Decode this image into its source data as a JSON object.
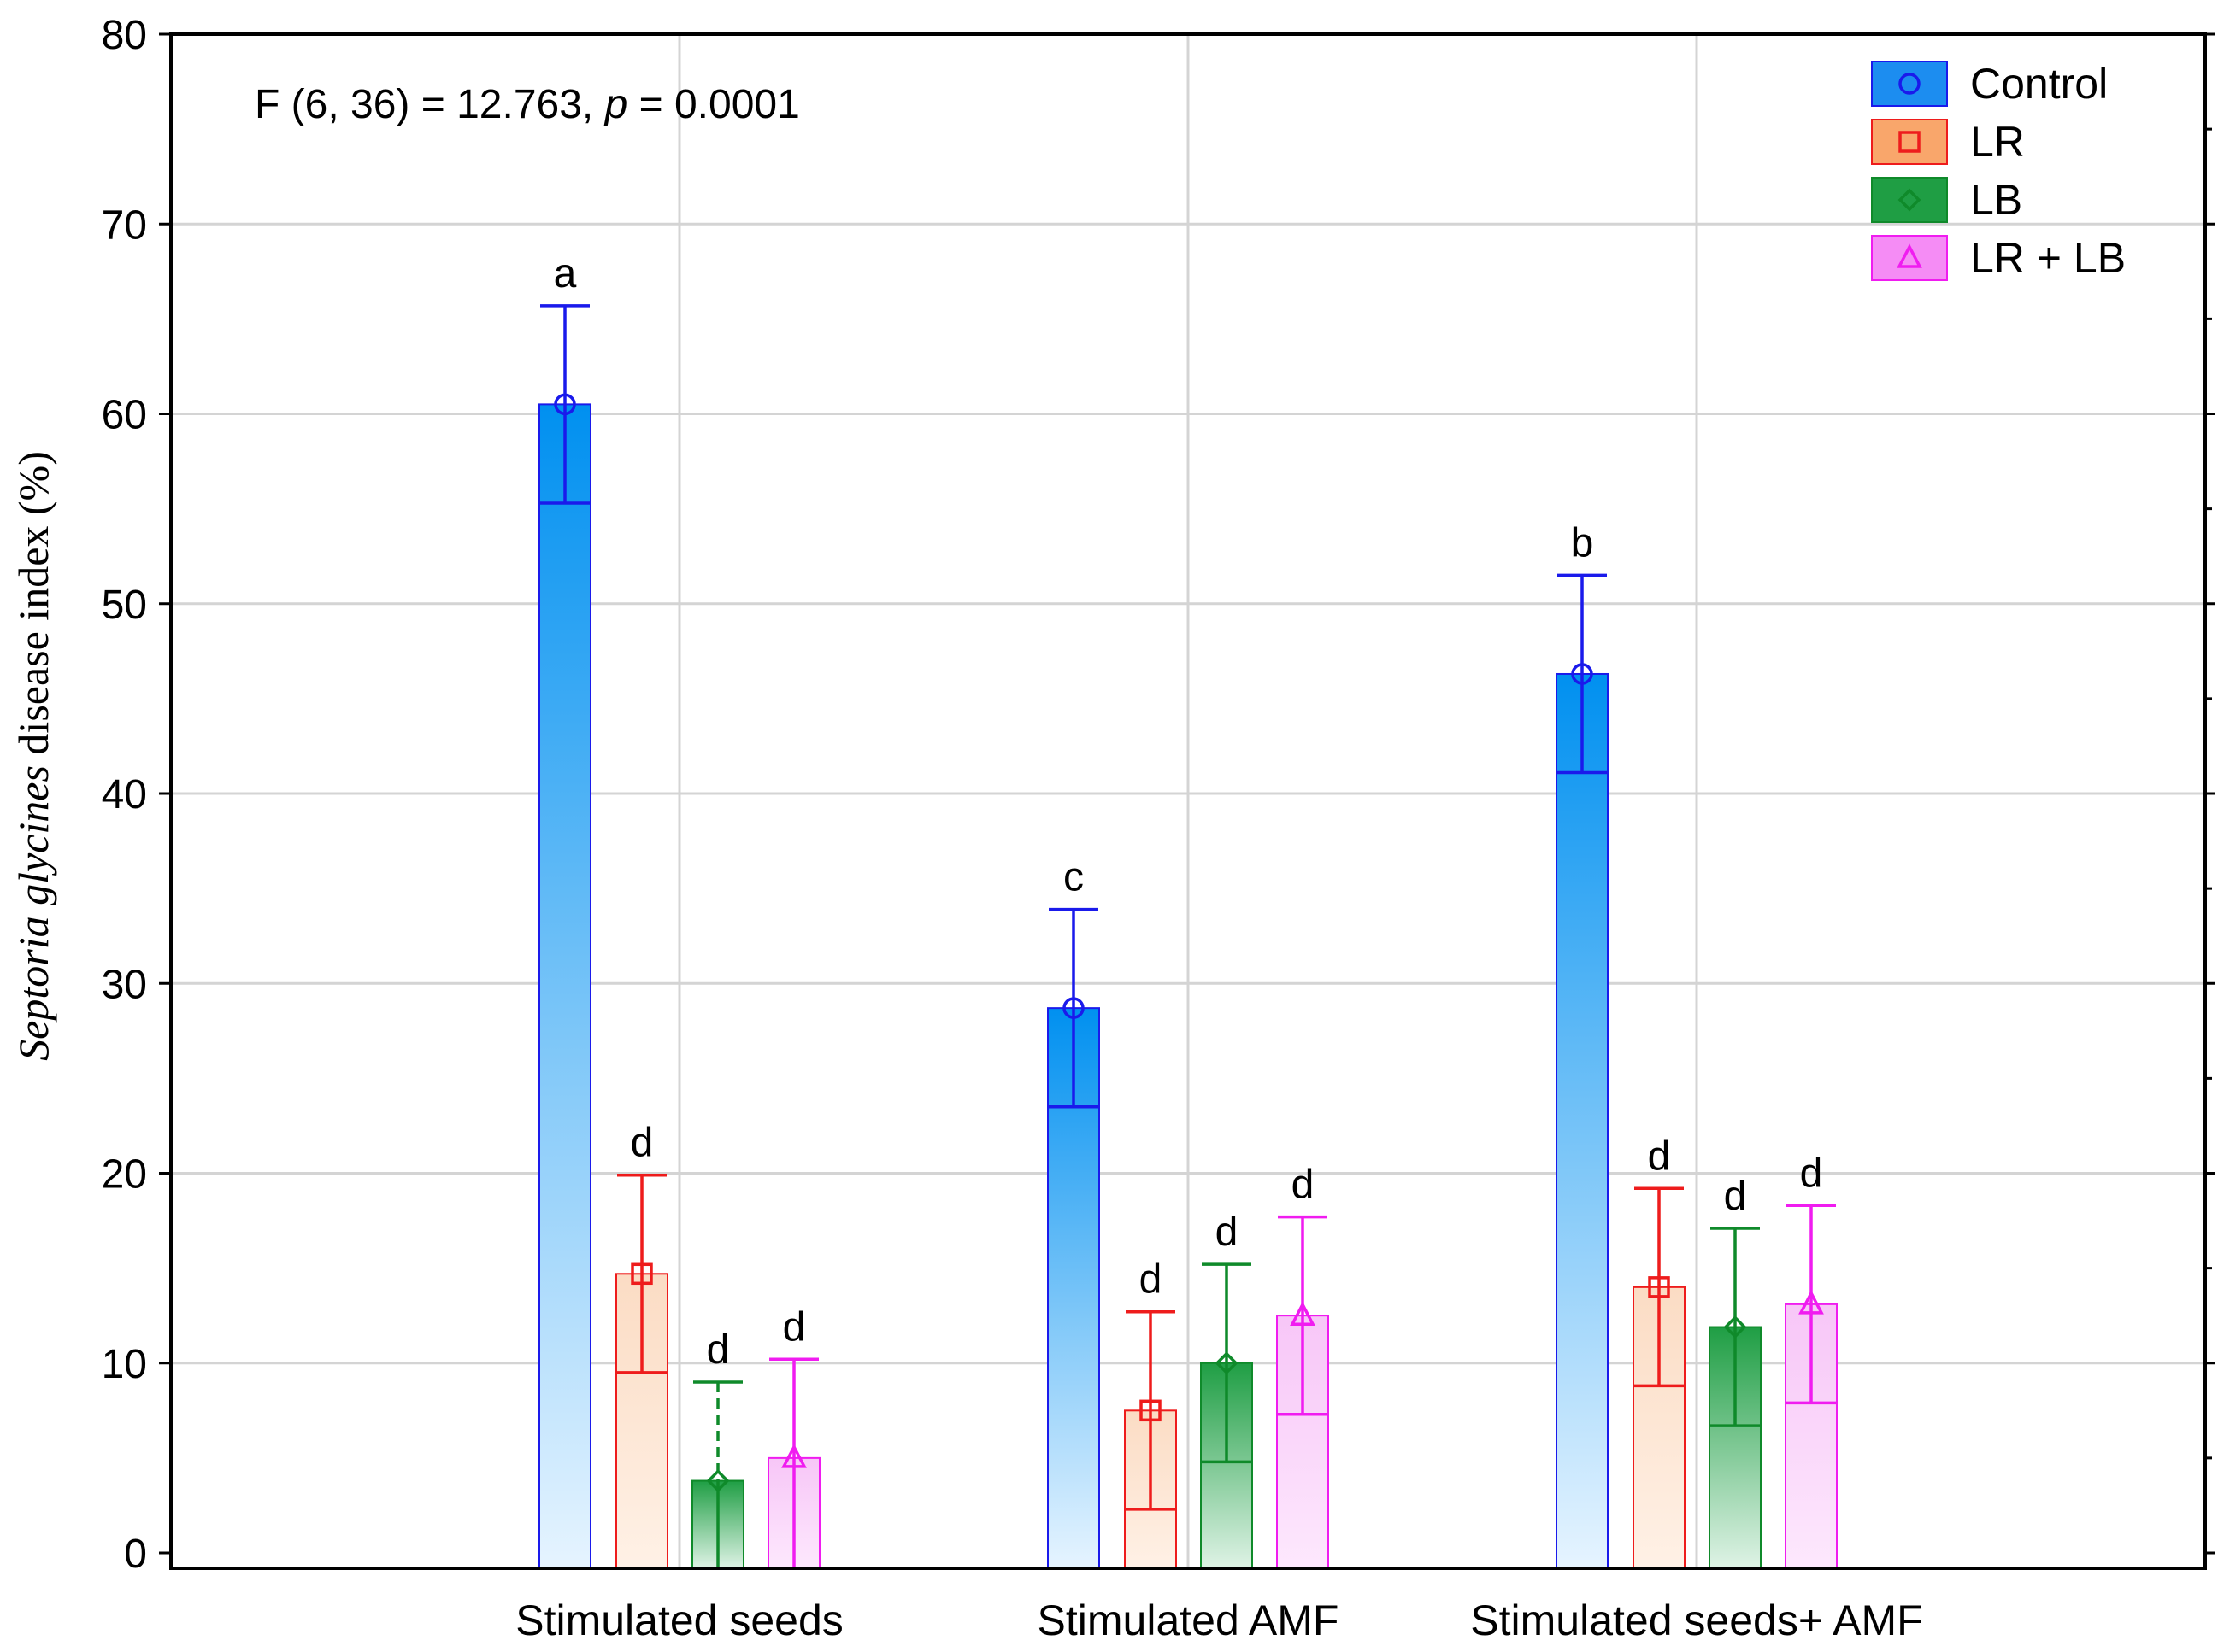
{
  "chart_data": {
    "type": "bar",
    "annotation": {
      "prefix": "F (6, 36) = 12.763, ",
      "p_symbol": "p",
      "suffix": " = 0.0001"
    },
    "ylabel_italic": "Septoria glycines",
    "ylabel_rest": " disease index (%)",
    "xlabel": "",
    "ylim": [
      0,
      80
    ],
    "yticks": [
      "0",
      "10",
      "20",
      "30",
      "40",
      "50",
      "60",
      "70",
      "80"
    ],
    "grid": true,
    "legend_position": "top-right",
    "categories": [
      "Stimulated seeds",
      "Stimulated AMF",
      "Stimulated seeds+ AMF"
    ],
    "series": [
      {
        "name": "Control",
        "marker": "circle",
        "color": "#1a1aeb",
        "fill_top": "#0090f0",
        "fill_bottom": "#e6f4ff",
        "values": [
          60.5,
          28.7,
          46.3
        ],
        "error": [
          5.2,
          5.2,
          5.2
        ],
        "letters": [
          "a",
          "c",
          "b"
        ]
      },
      {
        "name": "LR",
        "marker": "square",
        "color": "#ee1c1c",
        "fill_top": "#fbdcc4",
        "fill_bottom": "#fff1e6",
        "values": [
          14.7,
          7.5,
          14.0
        ],
        "error": [
          5.2,
          5.2,
          5.2
        ],
        "letters": [
          "d",
          "d",
          "d"
        ]
      },
      {
        "name": "LB",
        "marker": "diamond",
        "color": "#0f8a2a",
        "fill_top": "#1f9e44",
        "fill_bottom": "#dff3e6",
        "values": [
          3.8,
          10.0,
          11.9
        ],
        "error": [
          5.2,
          5.2,
          5.2
        ],
        "letters": [
          "d",
          "d",
          "d"
        ]
      },
      {
        "name": "LR + LB",
        "marker": "triangle",
        "color": "#f01cf0",
        "fill_top": "#f7c6f7",
        "fill_bottom": "#fde8fd",
        "values": [
          5.0,
          12.5,
          13.1
        ],
        "error": [
          5.2,
          5.2,
          5.2
        ],
        "letters": [
          "d",
          "d",
          "d"
        ]
      }
    ]
  }
}
